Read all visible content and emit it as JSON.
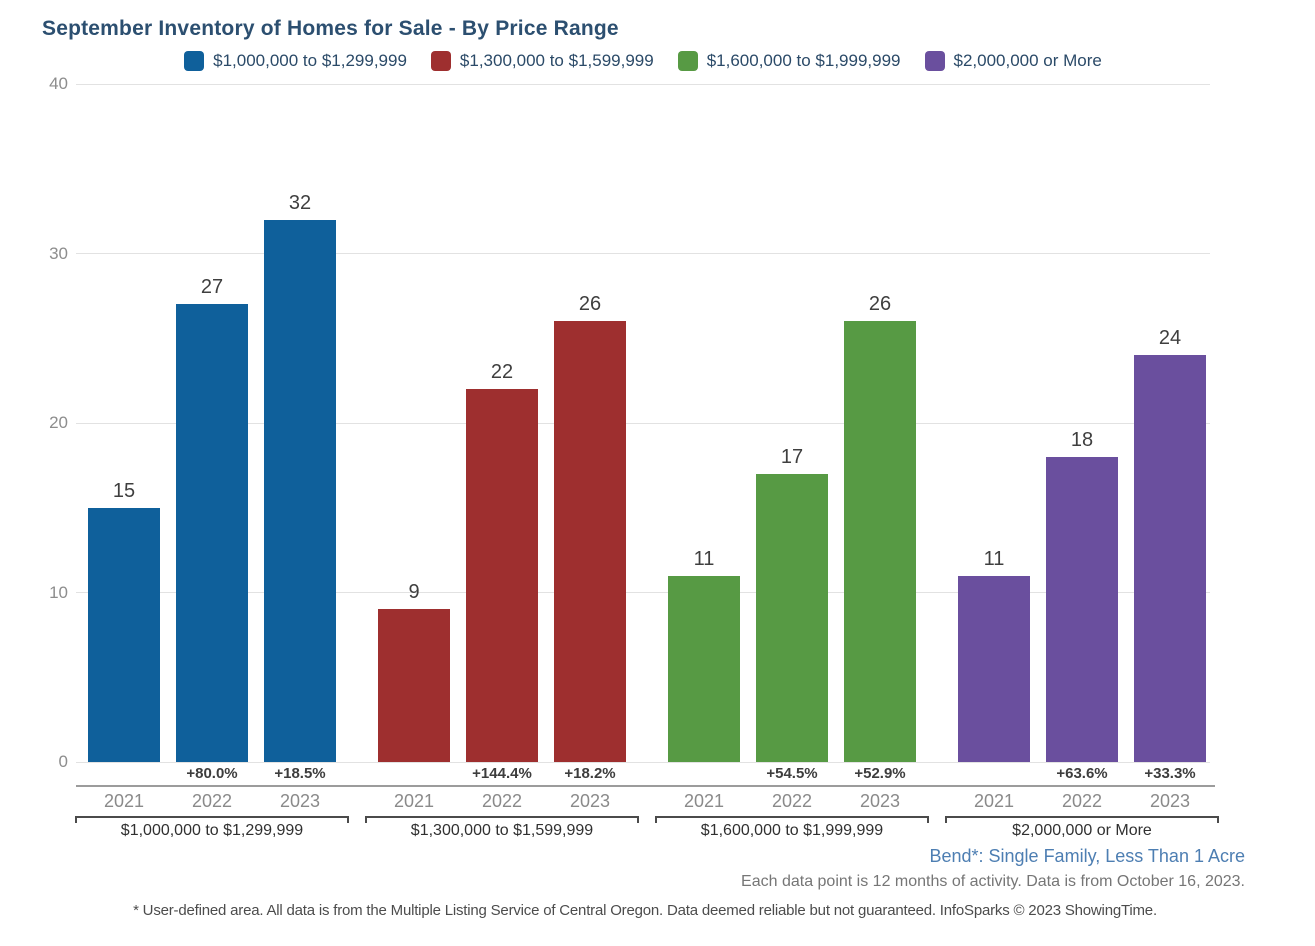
{
  "chart_data": {
    "type": "bar",
    "title": "September Inventory of Homes for Sale - By Price Range",
    "ylabel": "",
    "xlabel": "",
    "ylim": [
      0,
      40
    ],
    "yticks": [
      0,
      10,
      20,
      30,
      40
    ],
    "grid": true,
    "legend_position": "top",
    "categories": [
      "2021",
      "2022",
      "2023"
    ],
    "groups": [
      {
        "label": "$1,000,000 to $1,299,999",
        "color": "#0f609b",
        "values": [
          15,
          27,
          32
        ],
        "pct_changes": [
          null,
          "+80.0%",
          "+18.5%"
        ]
      },
      {
        "label": "$1,300,000 to $1,599,999",
        "color": "#9e2f2f",
        "values": [
          9,
          22,
          26
        ],
        "pct_changes": [
          null,
          "+144.4%",
          "+18.2%"
        ]
      },
      {
        "label": "$1,600,000 to $1,999,999",
        "color": "#579a44",
        "values": [
          11,
          17,
          26
        ],
        "pct_changes": [
          null,
          "+54.5%",
          "+52.9%"
        ]
      },
      {
        "label": "$2,000,000 or More",
        "color": "#6a4f9e",
        "values": [
          11,
          18,
          24
        ],
        "pct_changes": [
          null,
          "+63.6%",
          "+33.3%"
        ]
      }
    ]
  },
  "footer": {
    "area_note": "Bend*: Single Family, Less Than 1 Acre",
    "data_note": "Each data point is 12 months of activity. Data is from October 16, 2023.",
    "disclaimer": "* User-defined area. All data is from the Multiple Listing Service of Central Oregon. Data deemed reliable but not guaranteed. InfoSparks © 2023 ShowingTime."
  },
  "colors": {
    "title": "#2c4f70",
    "legend_text": "#2b4a68",
    "axis_text": "#8d8d8d",
    "gridline": "#e2e2e2",
    "footer_blue": "#4d7eb2"
  }
}
